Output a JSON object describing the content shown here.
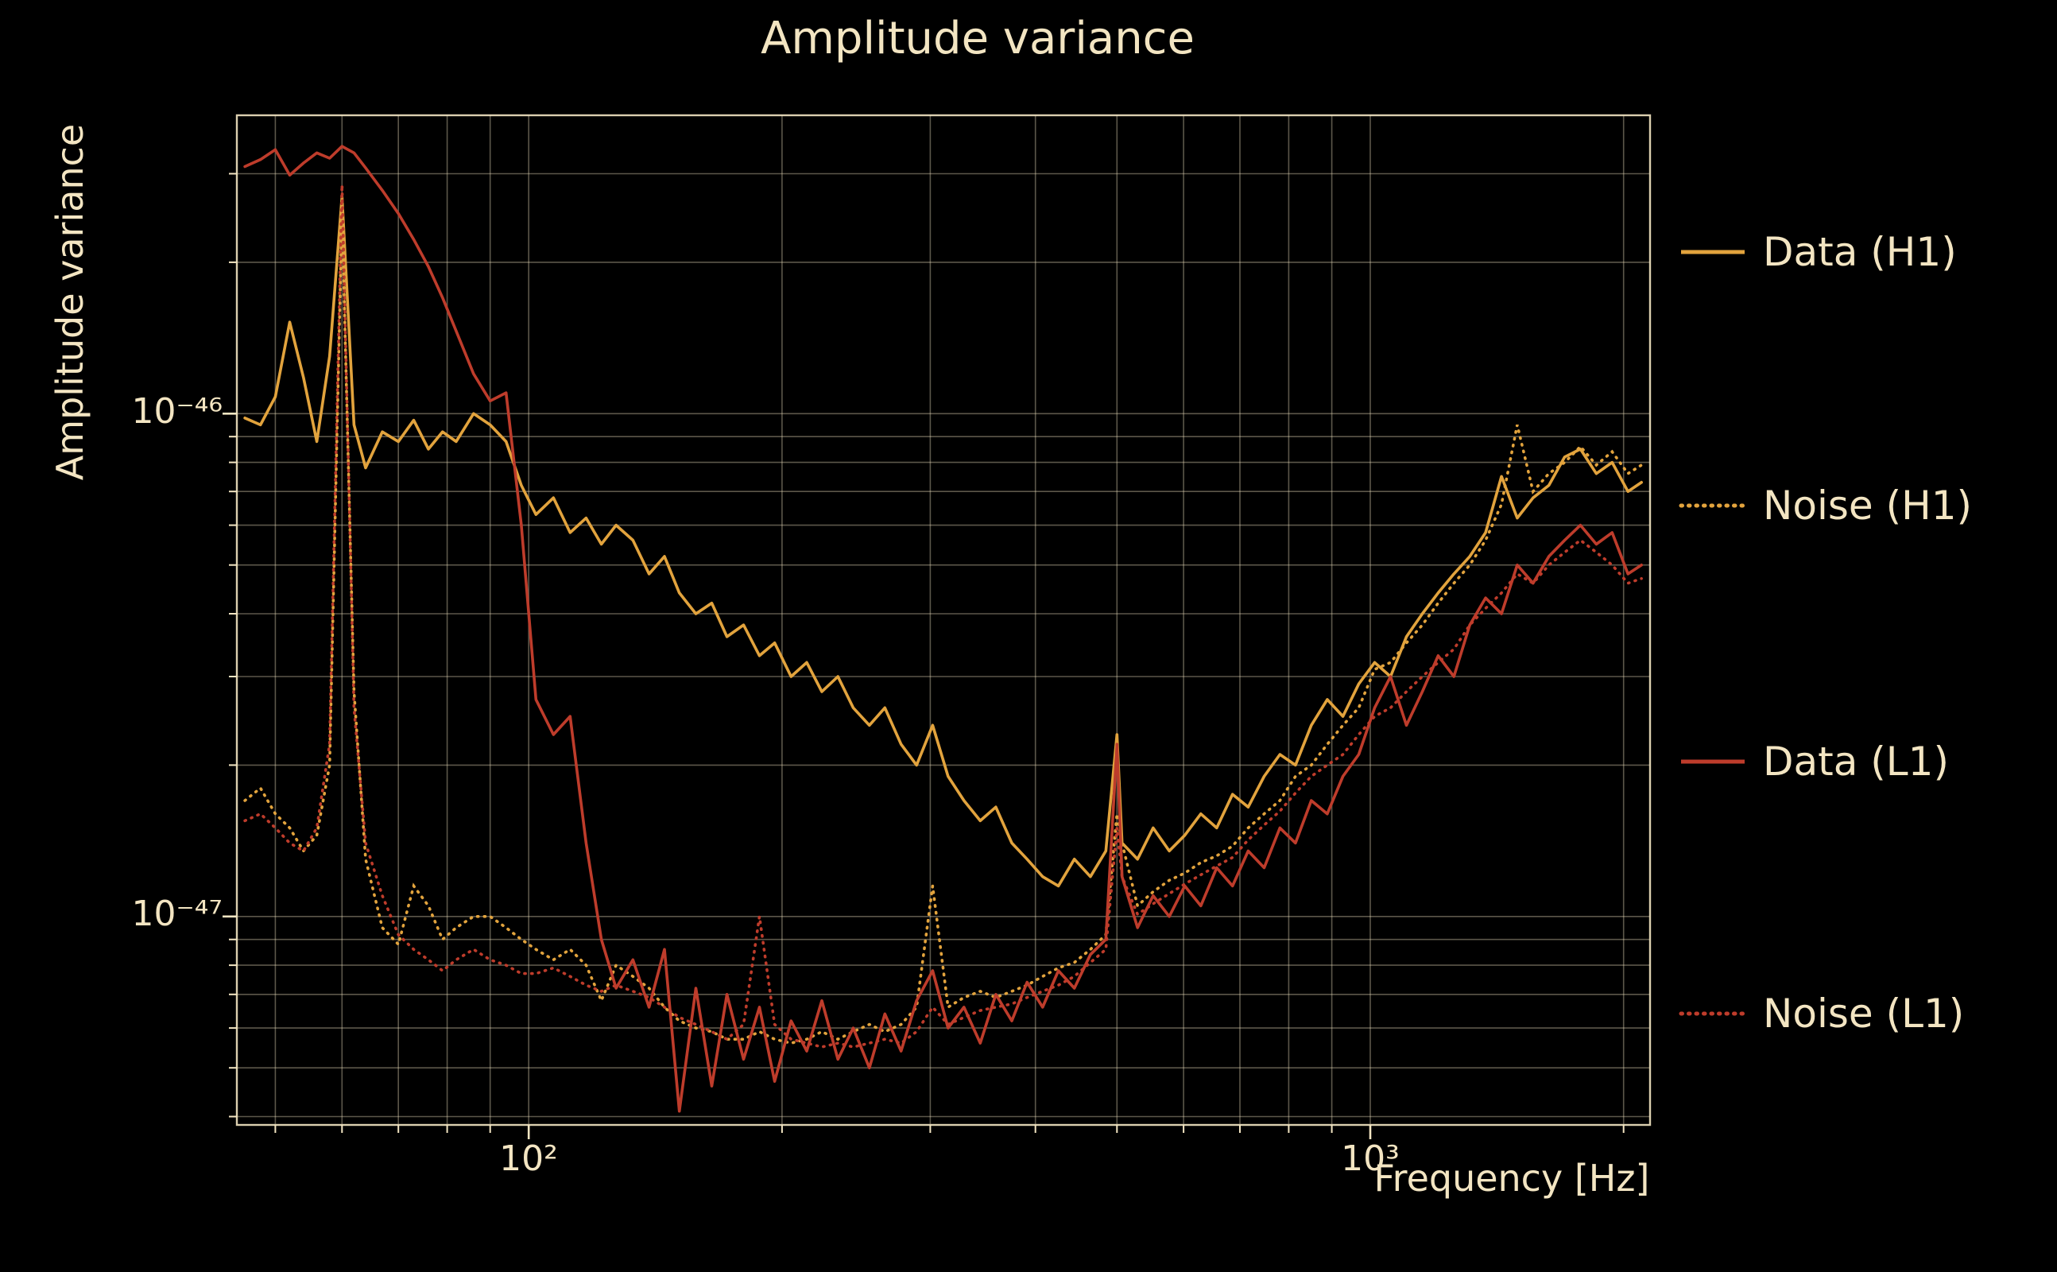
{
  "title": "Amplitude variance",
  "colors": {
    "background": "#000000",
    "text": "#f3e5c2",
    "grid": "#f3e5c2",
    "gold": "#e2a33d",
    "red": "#be3c2b"
  },
  "chart_data": {
    "type": "line",
    "title": "Amplitude variance",
    "xlabel": "Frequency [Hz]",
    "ylabel": "Amplitude variance",
    "xscale": "log",
    "yscale": "log",
    "xlim": [
      45,
      2150
    ],
    "ylim": [
      3.85e-48,
      3.92e-46
    ],
    "grid": "both",
    "legend_position": "outside-right",
    "xticks": {
      "major": [
        100,
        1000
      ],
      "major_labels": [
        "10²",
        "10³"
      ],
      "minor": [
        50,
        60,
        70,
        80,
        90,
        200,
        300,
        400,
        500,
        600,
        700,
        800,
        900,
        2000
      ]
    },
    "yticks": {
      "major": [
        1e-46,
        1e-47
      ],
      "major_labels": [
        "10⁻⁴⁶",
        "10⁻⁴⁷"
      ],
      "minor": [
        4e-48,
        5e-48,
        6e-48,
        7e-48,
        8e-48,
        9e-48,
        2e-47,
        3e-47,
        4e-47,
        5e-47,
        6e-47,
        7e-47,
        8e-47,
        9e-47,
        2e-46,
        3e-46
      ]
    },
    "value_scale": 1e-48,
    "value_note": "series values are in units of 1e-48; multiply by value_scale for absolute amplitude variance",
    "x": [
      46,
      48,
      50,
      52,
      54,
      56,
      58,
      60,
      62,
      64,
      67,
      70,
      73,
      76,
      79,
      82,
      86,
      90,
      94,
      98,
      102,
      107,
      112,
      117,
      122,
      127,
      133,
      139,
      145,
      151,
      158,
      165,
      172,
      180,
      188,
      196,
      205,
      214,
      223,
      233,
      243,
      254,
      265,
      277,
      289,
      302,
      315,
      329,
      344,
      359,
      375,
      391,
      408,
      426,
      445,
      465,
      485,
      500,
      507,
      529,
      552,
      577,
      602,
      629,
      657,
      686,
      716,
      748,
      781,
      815,
      851,
      889,
      928,
      969,
      1012,
      1057,
      1104,
      1153,
      1204,
      1257,
      1313,
      1371,
      1432,
      1495,
      1561,
      1630,
      1702,
      1777,
      1856,
      1938,
      2024,
      2100
    ],
    "series": [
      {
        "name": "Data (H1)",
        "color": "gold",
        "style": "solid",
        "values": [
          98,
          95,
          108,
          152,
          118,
          88,
          130,
          270,
          95,
          78,
          92,
          88,
          97,
          85,
          92,
          88,
          100,
          95,
          88,
          72,
          63,
          68,
          58,
          62,
          55,
          60,
          56,
          48,
          52,
          44,
          40,
          42,
          36,
          38,
          33,
          35,
          30,
          32,
          28,
          30,
          26,
          24,
          26,
          22,
          20,
          24,
          19,
          17,
          15.5,
          16.5,
          14,
          13,
          12,
          11.5,
          13,
          12,
          13.5,
          23,
          14,
          13,
          15,
          13.5,
          14.5,
          16,
          15,
          17.5,
          16.5,
          19,
          21,
          20,
          24,
          27,
          25,
          29,
          32,
          30,
          36,
          40,
          44,
          48,
          52,
          58,
          75,
          62,
          68,
          72,
          82,
          85,
          76,
          80,
          70,
          73
        ]
      },
      {
        "name": "Noise (H1)",
        "color": "gold",
        "style": "dotted",
        "values": [
          17,
          18,
          16,
          15,
          13.5,
          14.5,
          20,
          255,
          28,
          13,
          9.5,
          8.8,
          11.5,
          10.5,
          9,
          9.5,
          10,
          10,
          9.5,
          9,
          8.6,
          8.2,
          8.6,
          8,
          6.8,
          8,
          7.6,
          7.2,
          6.6,
          6.2,
          6,
          5.9,
          5.7,
          5.7,
          5.9,
          5.7,
          5.6,
          5.7,
          5.9,
          5.7,
          5.9,
          6.1,
          5.9,
          6.1,
          6.6,
          11.5,
          6.6,
          6.9,
          7.1,
          6.9,
          7.1,
          7.3,
          7.6,
          7.9,
          8.1,
          8.6,
          9.2,
          16,
          14,
          10.5,
          11.2,
          11.8,
          12.2,
          12.8,
          13.2,
          13.8,
          15,
          16,
          17,
          19,
          20,
          22,
          24,
          26,
          31,
          32,
          35,
          38,
          42,
          46,
          50,
          56,
          66,
          95,
          70,
          76,
          80,
          86,
          79,
          84,
          76,
          79
        ]
      },
      {
        "name": "Data (L1)",
        "color": "red",
        "style": "solid",
        "values": [
          310,
          320,
          335,
          298,
          315,
          330,
          322,
          340,
          330,
          308,
          278,
          250,
          222,
          196,
          170,
          146,
          120,
          106,
          110,
          60,
          27,
          23,
          25,
          14,
          9,
          7.2,
          8.2,
          6.6,
          8.6,
          4.1,
          7.2,
          4.6,
          7,
          5.2,
          6.6,
          4.7,
          6.2,
          5.4,
          6.8,
          5.2,
          6,
          5,
          6.4,
          5.4,
          6.8,
          7.8,
          6,
          6.6,
          5.6,
          7,
          6.2,
          7.4,
          6.6,
          7.8,
          7.2,
          8.4,
          9,
          22,
          12,
          9.5,
          11,
          10,
          11.5,
          10.5,
          12.5,
          11.5,
          13.5,
          12.5,
          15,
          14,
          17,
          16,
          19,
          21,
          26,
          30,
          24,
          28,
          33,
          30,
          38,
          43,
          40,
          50,
          46,
          52,
          56,
          60,
          55,
          58,
          48,
          50
        ]
      },
      {
        "name": "Noise (L1)",
        "color": "red",
        "style": "dotted",
        "values": [
          15.5,
          16,
          15,
          14,
          13.5,
          15,
          22,
          285,
          26,
          14,
          11,
          9.2,
          8.6,
          8.2,
          7.8,
          8.2,
          8.6,
          8.2,
          8,
          7.7,
          7.7,
          7.9,
          7.6,
          7.3,
          7.1,
          7.3,
          7.1,
          6.9,
          6.6,
          6.3,
          6.1,
          5.9,
          5.7,
          6.1,
          10,
          6.1,
          5.7,
          5.6,
          5.5,
          5.6,
          5.5,
          5.6,
          5.7,
          5.6,
          5.9,
          6.6,
          6.1,
          6.3,
          6.5,
          6.6,
          6.7,
          6.9,
          7.1,
          7.3,
          7.6,
          8.1,
          8.6,
          15,
          12,
          10.1,
          10.6,
          11.1,
          11.6,
          12.1,
          12.6,
          13.1,
          14.2,
          15.2,
          16.2,
          17.6,
          19,
          20,
          21,
          23,
          25,
          26,
          28,
          30,
          32,
          34,
          38,
          41,
          44,
          48,
          46,
          50,
          53,
          56,
          53,
          50,
          46,
          47
        ]
      }
    ]
  }
}
